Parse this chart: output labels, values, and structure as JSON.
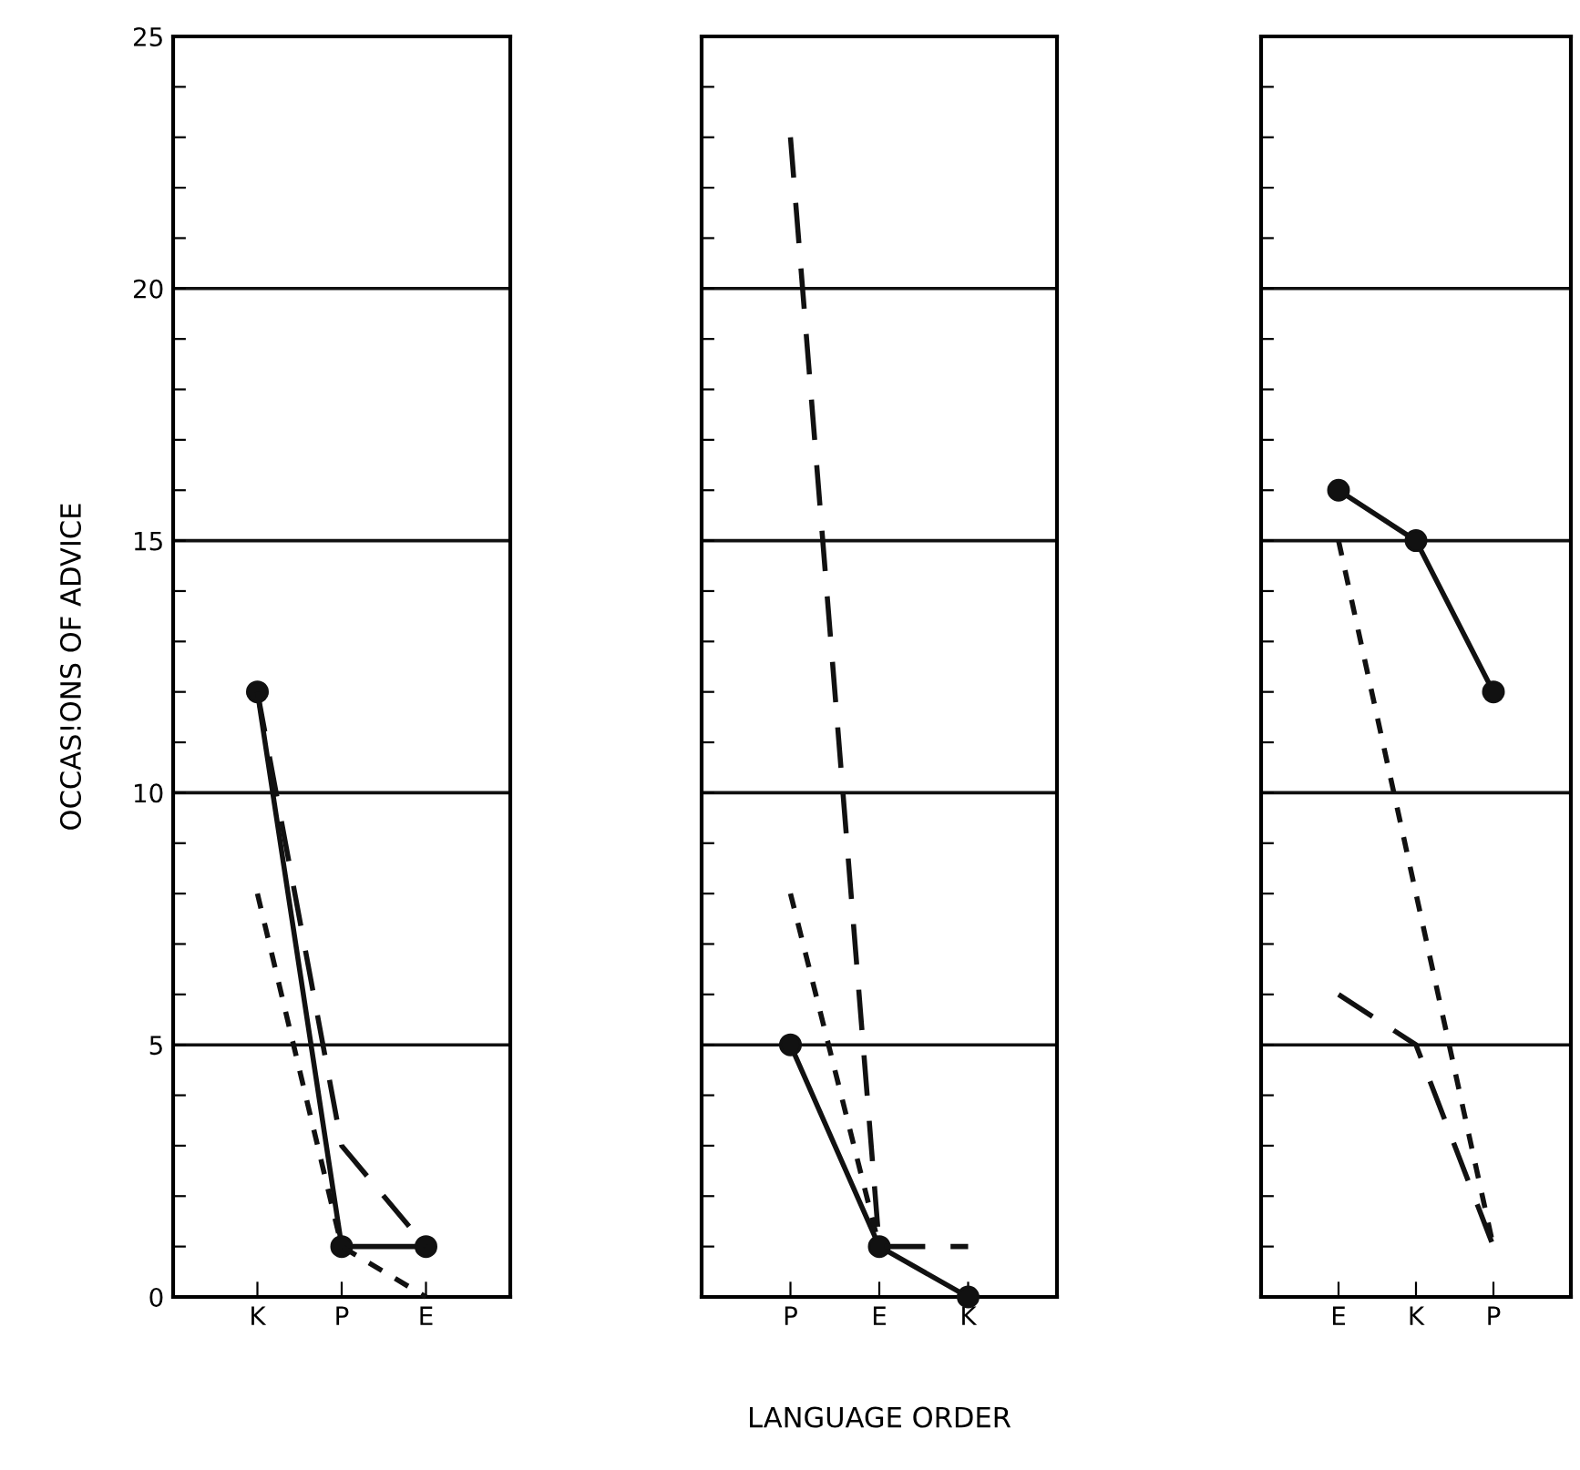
{
  "chart_data": [
    {
      "type": "line",
      "ylabel": "OCCAS!ONS OF ADVICE",
      "categories": [
        "K",
        "P",
        "E"
      ],
      "ylim": [
        0,
        25
      ],
      "yticks": [
        0,
        {
          "value": 1,
          "label": null
        },
        {
          "value": 2,
          "label": null
        },
        {
          "value": 3,
          "label": null
        },
        {
          "value": 4,
          "label": null
        },
        5,
        {
          "value": 6,
          "label": null
        },
        {
          "value": 7,
          "label": null
        },
        {
          "value": 8,
          "label": null
        },
        {
          "value": 9,
          "label": null
        },
        10,
        {
          "value": 11,
          "label": null
        },
        {
          "value": 12,
          "label": null
        },
        {
          "value": 13,
          "label": null
        },
        {
          "value": 14,
          "label": null
        },
        15,
        {
          "value": 16,
          "label": null
        },
        {
          "value": 17,
          "label": null
        },
        {
          "value": 18,
          "label": null
        },
        {
          "value": 19,
          "label": null
        },
        20,
        {
          "value": 21,
          "label": null
        },
        {
          "value": 22,
          "label": null
        },
        {
          "value": 23,
          "label": null
        },
        {
          "value": 24,
          "label": null
        },
        25
      ],
      "ref_lines": [
        {
          "axis": "y",
          "value": 5
        },
        {
          "axis": "y",
          "value": 10
        },
        {
          "axis": "y",
          "value": 15
        },
        {
          "axis": "y",
          "value": 20
        }
      ],
      "series": [
        {
          "color": "#111111",
          "values": [
            12,
            1,
            1
          ],
          "line_style": "solid",
          "marker": "circle"
        },
        {
          "color": "#111111",
          "values": [
            12,
            3,
            1
          ],
          "line_style": "dashed",
          "marker": "none"
        },
        {
          "color": "#111111",
          "values": [
            8,
            1,
            0
          ],
          "line_style": "dotted",
          "marker": "none"
        }
      ]
    },
    {
      "type": "line",
      "xlabel": "LANGUAGE ORDER",
      "categories": [
        "P",
        "E",
        "K"
      ],
      "ylim": [
        0,
        25
      ],
      "tick_labels": "x",
      "yticks": [
        0,
        1,
        2,
        3,
        4,
        5,
        6,
        7,
        8,
        9,
        10,
        11,
        12,
        13,
        14,
        15,
        16,
        17,
        18,
        19,
        20,
        21,
        22,
        23,
        24,
        25
      ],
      "ref_lines": [
        {
          "axis": "y",
          "value": 5
        },
        {
          "axis": "y",
          "value": 10
        },
        {
          "axis": "y",
          "value": 15
        },
        {
          "axis": "y",
          "value": 20
        }
      ],
      "series": [
        {
          "color": "#111111",
          "values": [
            5,
            1,
            0
          ],
          "line_style": "solid",
          "marker": "circle"
        },
        {
          "color": "#111111",
          "values": [
            23,
            1,
            1
          ],
          "line_style": "dashed",
          "marker": "none"
        },
        {
          "color": "#111111",
          "values": [
            8,
            1,
            null
          ],
          "line_style": "dotted",
          "marker": "none"
        }
      ]
    },
    {
      "type": "line",
      "categories": [
        "E",
        "K",
        "P"
      ],
      "ylim": [
        0,
        25
      ],
      "tick_labels": "x",
      "yticks": [
        0,
        1,
        2,
        3,
        4,
        5,
        6,
        7,
        8,
        9,
        10,
        11,
        12,
        13,
        14,
        15,
        16,
        17,
        18,
        19,
        20,
        21,
        22,
        23,
        24,
        25
      ],
      "ref_lines": [
        {
          "axis": "y",
          "value": 5
        },
        {
          "axis": "y",
          "value": 10
        },
        {
          "axis": "y",
          "value": 15
        },
        {
          "axis": "y",
          "value": 20
        }
      ],
      "series": [
        {
          "color": "#111111",
          "values": [
            16,
            15,
            12
          ],
          "line_style": "solid",
          "marker": "circle"
        },
        {
          "color": "#111111",
          "values": [
            6,
            5,
            1
          ],
          "line_style": "dashed",
          "marker": "none"
        },
        {
          "color": "#111111",
          "values": [
            15,
            null,
            1
          ],
          "line_style": "dotted",
          "marker": "none"
        }
      ]
    }
  ]
}
